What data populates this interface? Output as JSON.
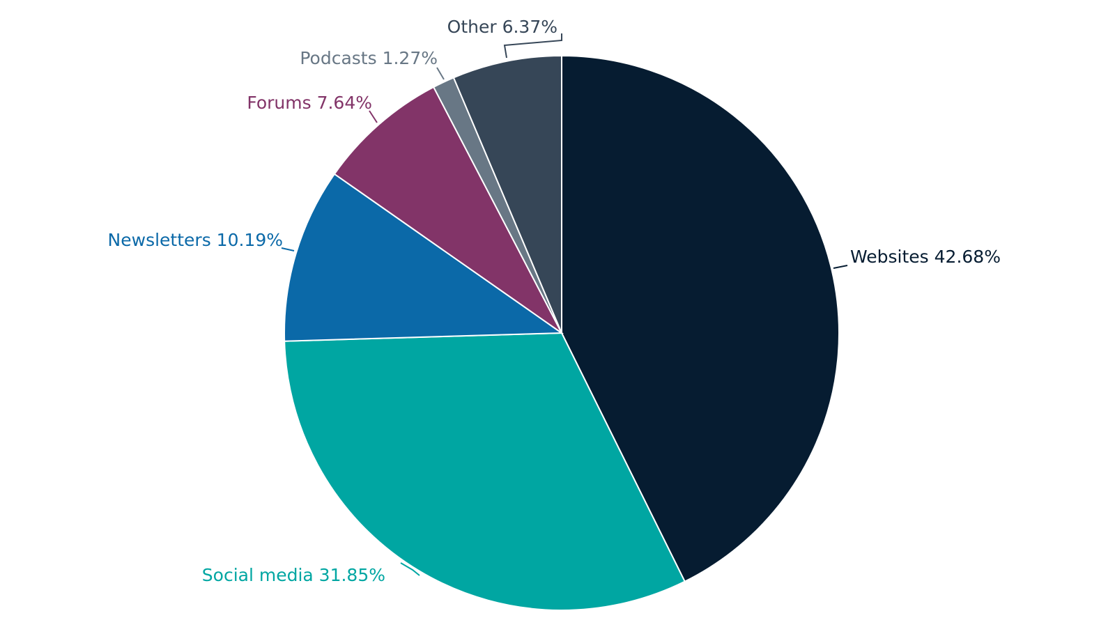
{
  "chart_data": {
    "type": "pie",
    "start_angle_deg": 0,
    "direction": "clockwise",
    "slices": [
      {
        "category": "Websites",
        "value": 42.68,
        "label": "Websites 42.68%",
        "color": "#061c31"
      },
      {
        "category": "Social media",
        "value": 31.85,
        "label": "Social media 31.85%",
        "color": "#00a6a2"
      },
      {
        "category": "Newsletters",
        "value": 10.19,
        "label": "Newsletters 10.19%",
        "color": "#0b69a8"
      },
      {
        "category": "Forums",
        "value": 7.64,
        "label": "Forums 7.64%",
        "color": "#823468"
      },
      {
        "category": "Podcasts",
        "value": 1.27,
        "label": "Podcasts 1.27%",
        "color": "#687785"
      },
      {
        "category": "Other",
        "value": 6.37,
        "label": "Other 6.37%",
        "color": "#364657"
      }
    ]
  }
}
